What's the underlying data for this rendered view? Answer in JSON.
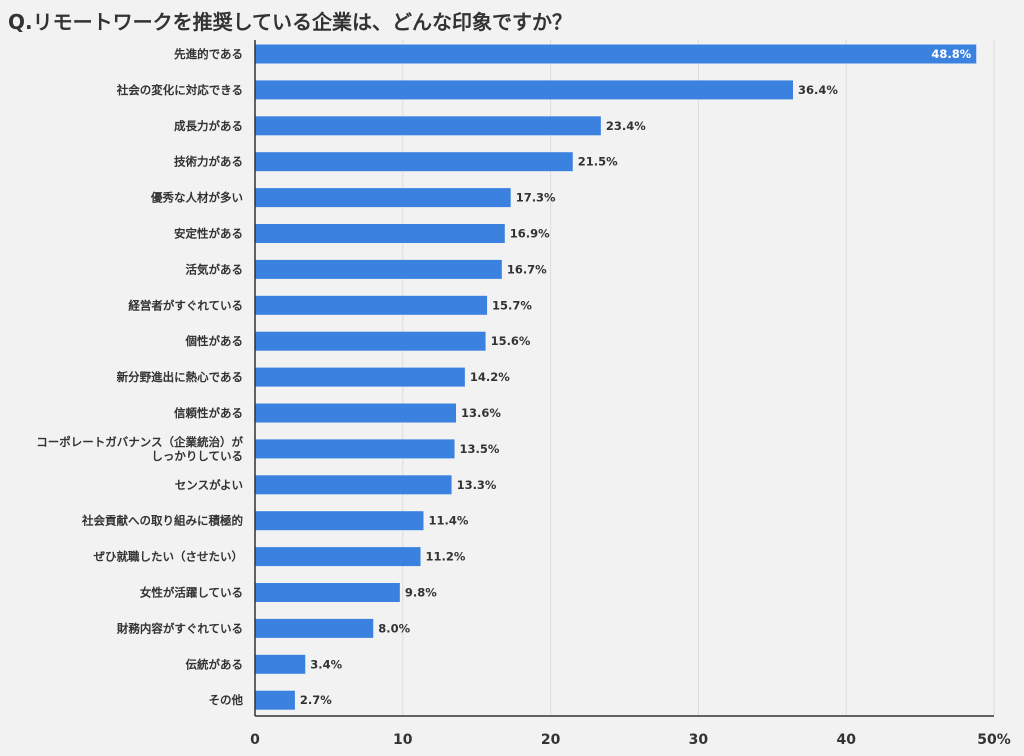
{
  "chart_data": {
    "type": "bar",
    "orientation": "horizontal",
    "title": "Q.リモートワークを推奨している企業は、どんな印象ですか？",
    "categories": [
      "先進的である",
      "社会の変化に対応できる",
      "成長力がある",
      "技術力がある",
      "優秀な人材が多い",
      "安定性がある",
      "活気がある",
      "経営者がすぐれている",
      "個性がある",
      "新分野進出に熱心である",
      "信頼性がある",
      "コーポレートガバナンス（企業統治）が\nしっかりしている",
      "センスがよい",
      "社会貢献への取り組みに積極的",
      "ぜひ就職したい（させたい）",
      "女性が活躍している",
      "財務内容がすぐれている",
      "伝統がある",
      "その他"
    ],
    "values": [
      48.8,
      36.4,
      23.4,
      21.5,
      17.3,
      16.9,
      16.7,
      15.7,
      15.6,
      14.2,
      13.6,
      13.5,
      13.3,
      11.4,
      11.2,
      9.8,
      8.0,
      3.4,
      2.7
    ],
    "value_labels": [
      "48.8%",
      "36.4%",
      "23.4%",
      "21.5%",
      "17.3%",
      "16.9%",
      "16.7%",
      "15.7%",
      "15.6%",
      "14.2%",
      "13.6%",
      "13.5%",
      "13.3%",
      "11.4%",
      "11.2%",
      "9.8%",
      "8.0%",
      "3.4%",
      "2.7%"
    ],
    "xlim": [
      0,
      50
    ],
    "xticks": [
      0,
      10,
      20,
      30,
      40,
      50
    ],
    "xtick_labels": [
      "0",
      "10",
      "20",
      "30",
      "40",
      "50%"
    ],
    "xlabel": "",
    "ylabel": "",
    "grid": true,
    "bar_color": "#3b82e0",
    "grid_color": "#dcdcdc",
    "background": "#f2f2f2"
  }
}
